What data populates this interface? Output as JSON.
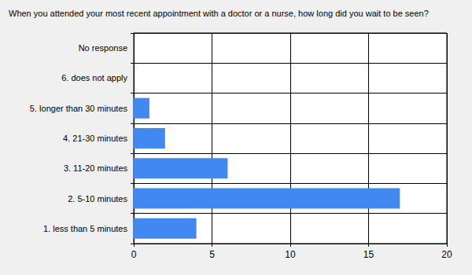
{
  "chart_data": {
    "type": "bar",
    "title": "When you attended your most recent appointment with a doctor or a nurse, how long did you wait to be seen?",
    "orientation": "horizontal",
    "categories": [
      "1. less than 5 minutes",
      "2. 5-10 minutes",
      "3. 11-20 minutes",
      "4. 21-30 minutes",
      "5. longer than 30 minutes",
      "6. does not apply",
      "No response"
    ],
    "values": [
      4,
      17,
      6,
      2,
      1,
      0,
      0
    ],
    "color": "#4189f0",
    "xlim": [
      0,
      20
    ],
    "xticks": [
      0,
      5,
      10,
      15,
      20
    ],
    "grid": true
  }
}
